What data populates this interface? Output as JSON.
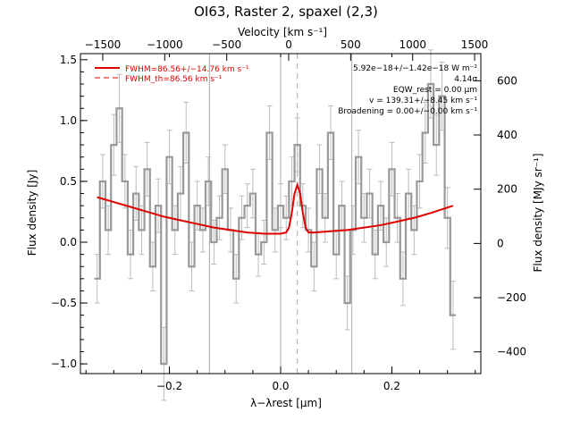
{
  "chart_data": {
    "type": "line",
    "title": "OI63, Raster 2, spaxel (2,3)",
    "xlabel": "λ−λrest [μm]",
    "ylabel": "Flux density [Jy]",
    "x2label": "Velocity [km s⁻¹]",
    "y2label": "Flux density [MJy sr⁻¹]",
    "xlim": [
      -0.36,
      0.36
    ],
    "ylim": [
      -1.08,
      1.55
    ],
    "x2lim": [
      -1680,
      1550
    ],
    "y2lim": [
      -480,
      700
    ],
    "xticks": [
      -0.2,
      0.0,
      0.2
    ],
    "yticks": [
      -1.0,
      -0.5,
      0.0,
      0.5,
      1.0,
      1.5
    ],
    "x2ticks": [
      -1500,
      -1000,
      -500,
      0,
      500,
      1000,
      1500
    ],
    "y2ticks": [
      -400,
      -200,
      0,
      200,
      400,
      600
    ],
    "xtick_labels": [
      "−0.2",
      "0.0",
      "0.2"
    ],
    "ytick_labels": [
      "−1.0",
      "−0.5",
      "0.0",
      "0.5",
      "1.0",
      "1.5"
    ],
    "x2tick_labels": [
      "−1500",
      "−1000",
      "−500",
      "0",
      "500",
      "1000",
      "1500"
    ],
    "y2tick_labels": [
      "−400",
      "−200",
      "0",
      "200",
      "400",
      "600"
    ],
    "vlines": [
      -0.128,
      0.0,
      0.128
    ],
    "vline_dashed": 0.03,
    "series": [
      {
        "name": "",
        "style": "step",
        "color": "#999999",
        "x": [
          -0.33,
          -0.32,
          -0.31,
          -0.3,
          -0.29,
          -0.28,
          -0.27,
          -0.26,
          -0.25,
          -0.24,
          -0.23,
          -0.22,
          -0.21,
          -0.2,
          -0.19,
          -0.18,
          -0.17,
          -0.16,
          -0.15,
          -0.14,
          -0.13,
          -0.12,
          -0.11,
          -0.1,
          -0.09,
          -0.08,
          -0.07,
          -0.06,
          -0.05,
          -0.04,
          -0.03,
          -0.02,
          -0.01,
          0.0,
          0.01,
          0.02,
          0.03,
          0.04,
          0.05,
          0.06,
          0.07,
          0.08,
          0.09,
          0.1,
          0.11,
          0.12,
          0.13,
          0.14,
          0.15,
          0.16,
          0.17,
          0.18,
          0.19,
          0.2,
          0.21,
          0.22,
          0.23,
          0.24,
          0.25,
          0.26,
          0.27,
          0.28,
          0.29,
          0.3,
          0.31
        ],
        "y": [
          -0.3,
          0.5,
          0.1,
          0.8,
          1.1,
          0.5,
          -0.1,
          0.4,
          0.1,
          0.6,
          -0.2,
          0.3,
          -1.0,
          0.7,
          0.1,
          0.4,
          0.9,
          -0.2,
          0.3,
          0.1,
          0.5,
          0.0,
          0.2,
          0.6,
          0.1,
          -0.3,
          0.2,
          0.3,
          0.4,
          -0.1,
          0.0,
          0.9,
          0.1,
          0.3,
          0.2,
          0.5,
          0.8,
          0.3,
          0.1,
          -0.2,
          0.6,
          0.2,
          0.9,
          -0.1,
          0.3,
          -0.5,
          0.1,
          0.7,
          0.2,
          0.4,
          -0.1,
          0.3,
          0.0,
          0.6,
          0.2,
          -0.3,
          0.4,
          0.1,
          0.5,
          0.9,
          1.3,
          0.8,
          1.2,
          0.2,
          -0.6
        ],
        "err": [
          0.2,
          0.22,
          0.2,
          0.25,
          0.28,
          0.22,
          0.2,
          0.22,
          0.2,
          0.22,
          0.2,
          0.22,
          0.3,
          0.22,
          0.2,
          0.22,
          0.25,
          0.2,
          0.2,
          0.18,
          0.2,
          0.18,
          0.18,
          0.2,
          0.18,
          0.2,
          0.18,
          0.18,
          0.2,
          0.18,
          0.18,
          0.22,
          0.18,
          0.18,
          0.18,
          0.2,
          0.22,
          0.18,
          0.18,
          0.2,
          0.2,
          0.2,
          0.22,
          0.2,
          0.2,
          0.22,
          0.2,
          0.22,
          0.2,
          0.2,
          0.2,
          0.2,
          0.2,
          0.22,
          0.2,
          0.22,
          0.2,
          0.2,
          0.22,
          0.25,
          0.28,
          0.25,
          0.28,
          0.25,
          0.28
        ]
      },
      {
        "name": "FWHM=86.56+/−14.76 km s⁻¹",
        "style": "line",
        "color": "#e00000",
        "x": [
          -0.33,
          -0.3,
          -0.27,
          -0.24,
          -0.21,
          -0.18,
          -0.15,
          -0.12,
          -0.09,
          -0.06,
          -0.03,
          -0.015,
          0.0,
          0.01,
          0.015,
          0.02,
          0.025,
          0.03,
          0.035,
          0.04,
          0.045,
          0.05,
          0.06,
          0.09,
          0.12,
          0.15,
          0.18,
          0.21,
          0.24,
          0.27,
          0.31
        ],
        "y": [
          0.37,
          0.33,
          0.29,
          0.25,
          0.21,
          0.18,
          0.15,
          0.12,
          0.1,
          0.08,
          0.07,
          0.07,
          0.07,
          0.08,
          0.12,
          0.24,
          0.4,
          0.47,
          0.4,
          0.24,
          0.12,
          0.08,
          0.08,
          0.09,
          0.1,
          0.12,
          0.14,
          0.17,
          0.2,
          0.24,
          0.3
        ]
      },
      {
        "name": "FWHM_th=86.56 km s⁻¹",
        "style": "dashed",
        "color": "#e00000",
        "x": [],
        "y": []
      }
    ],
    "annotations": [
      "5.92e−18+/−1.42e−18 W m⁻²",
      "4.14σ",
      "EQW_rest = 0.00 μm",
      "v = 139.31+/−8.45 km s⁻¹",
      "Broadening = 0.00+/−0.00 km s⁻¹"
    ],
    "grid": false,
    "legend_position": "top-left"
  }
}
